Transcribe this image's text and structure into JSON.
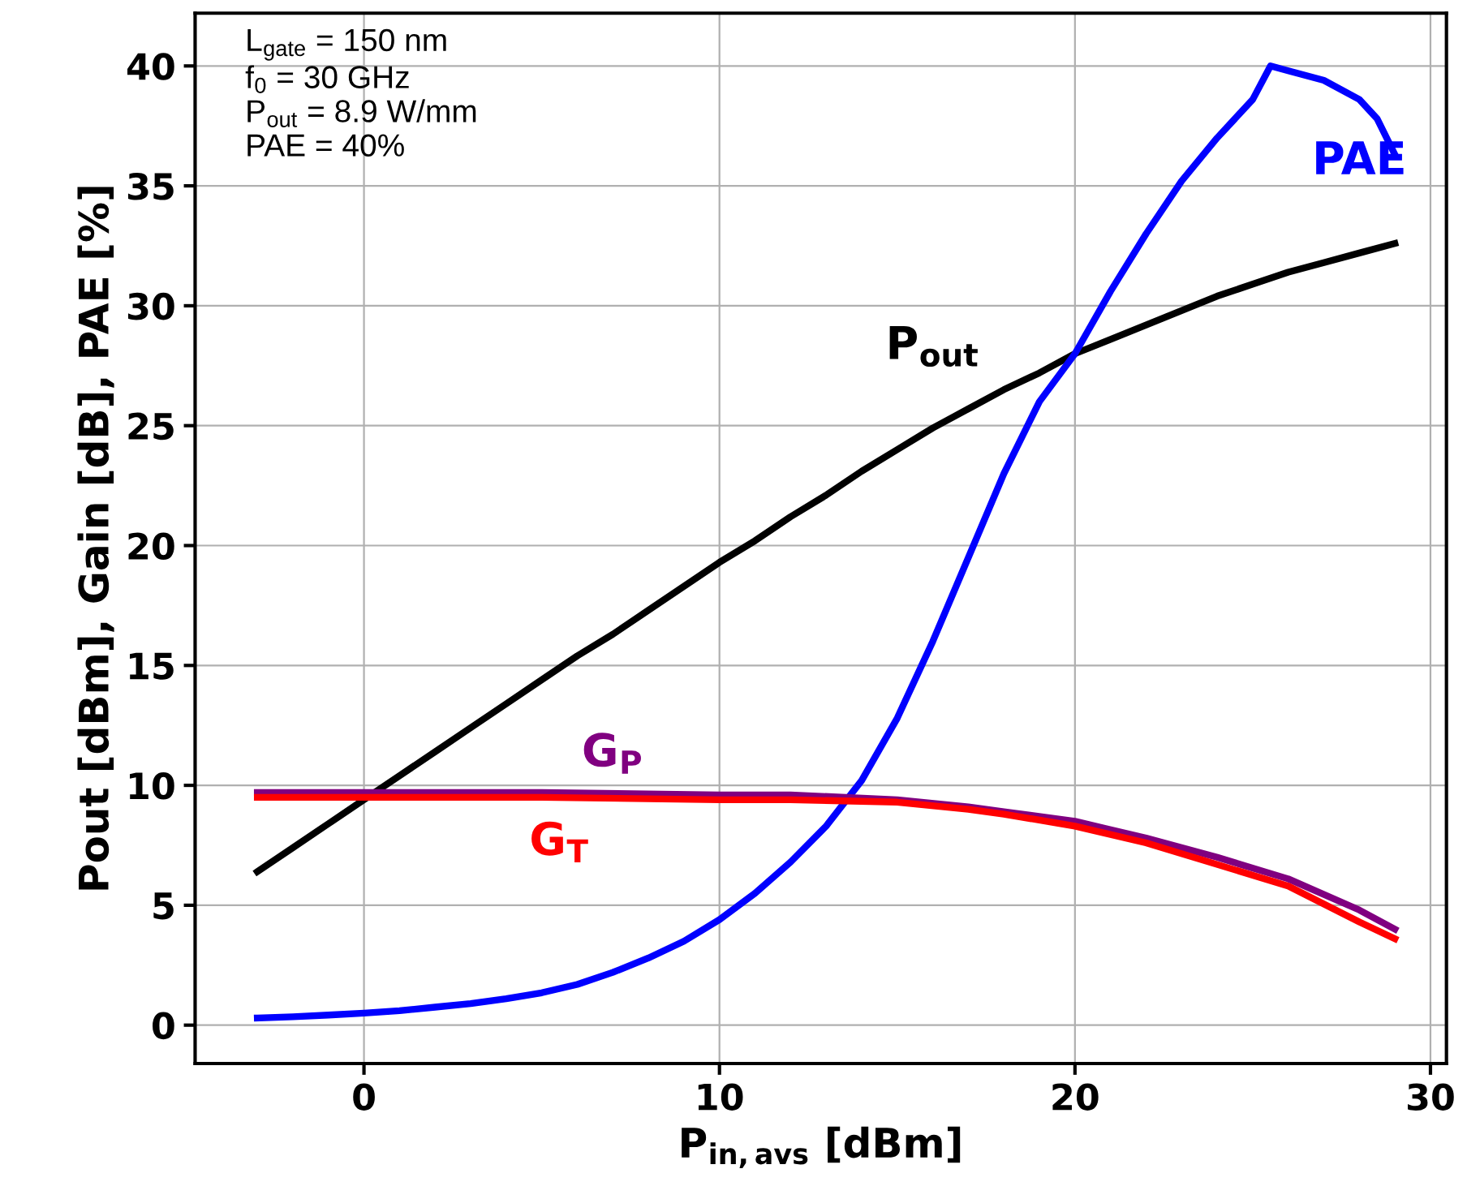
{
  "chart_data": {
    "type": "line",
    "xlabel": "P$_{in,avs}$ [dBm]",
    "ylabel": "Pout [dBm], Gain [dB], PAE [%]",
    "x": [
      -3,
      -2,
      -1,
      0,
      1,
      2,
      3,
      4,
      5,
      6,
      7,
      8,
      9,
      10,
      11,
      12,
      13,
      14,
      15,
      16,
      17,
      18,
      19,
      20,
      21,
      22,
      23,
      24,
      25,
      26,
      27,
      28,
      29
    ],
    "series": [
      {
        "name": "P$_{out}$",
        "color": "#000000",
        "values": [
          6.4,
          7.4,
          8.4,
          9.4,
          10.4,
          11.4,
          12.4,
          13.4,
          14.4,
          15.4,
          16.3,
          17.3,
          18.3,
          19.3,
          20.2,
          21.2,
          22.1,
          23.1,
          24.0,
          24.9,
          25.7,
          26.5,
          27.2,
          28.0,
          28.6,
          29.2,
          29.8,
          30.4,
          30.9,
          31.4,
          31.8,
          32.2,
          32.6
        ]
      },
      {
        "name": "PAE",
        "color": "#0000ff",
        "x": [
          -3,
          -2,
          -1,
          0,
          1,
          2,
          3,
          4,
          5,
          6,
          7,
          8,
          9,
          10,
          11,
          12,
          13,
          14,
          15,
          16,
          17,
          18,
          19,
          20,
          21,
          22,
          23,
          24,
          25,
          25.5,
          26,
          27,
          28,
          28.5,
          29
        ],
        "values": [
          0.3,
          0.35,
          0.42,
          0.5,
          0.6,
          0.75,
          0.9,
          1.1,
          1.35,
          1.7,
          2.2,
          2.8,
          3.5,
          4.4,
          5.5,
          6.8,
          8.3,
          10.2,
          12.8,
          16.0,
          19.5,
          23.0,
          26.0,
          28.0,
          30.6,
          33.0,
          35.2,
          37.0,
          38.6,
          40.0,
          39.8,
          39.4,
          38.6,
          37.8,
          36.3
        ]
      },
      {
        "name": "G$_{P}$",
        "color": "#800080",
        "x": [
          -3,
          0,
          5,
          10,
          12,
          15,
          17,
          18,
          20,
          22,
          24,
          26,
          28,
          29
        ],
        "values": [
          9.7,
          9.7,
          9.7,
          9.6,
          9.6,
          9.4,
          9.1,
          8.9,
          8.5,
          7.8,
          7.0,
          6.1,
          4.8,
          4.0
        ]
      },
      {
        "name": "G$_{T}$",
        "color": "#ff0000",
        "x": [
          -3,
          0,
          5,
          10,
          12,
          15,
          17,
          18,
          20,
          22,
          24,
          26,
          28,
          29
        ],
        "values": [
          9.5,
          9.5,
          9.5,
          9.4,
          9.4,
          9.3,
          9.0,
          8.8,
          8.3,
          7.6,
          6.7,
          5.8,
          4.3,
          3.6
        ]
      }
    ],
    "xlim": [
      -4.75,
      30.45
    ],
    "ylim": [
      -1.6,
      42.2
    ],
    "xticks": [
      0,
      10,
      20,
      30
    ],
    "yticks": [
      0,
      5,
      10,
      15,
      20,
      25,
      30,
      35,
      40
    ],
    "grid": true,
    "line_style": "solid",
    "marker": "none",
    "annotations": [
      "L$_{gate}$ = 150 nm\nf$_{0}$ = 30 GHz\nP$_{out}$ = 8.9 W/mm\nPAE = 40%"
    ]
  }
}
